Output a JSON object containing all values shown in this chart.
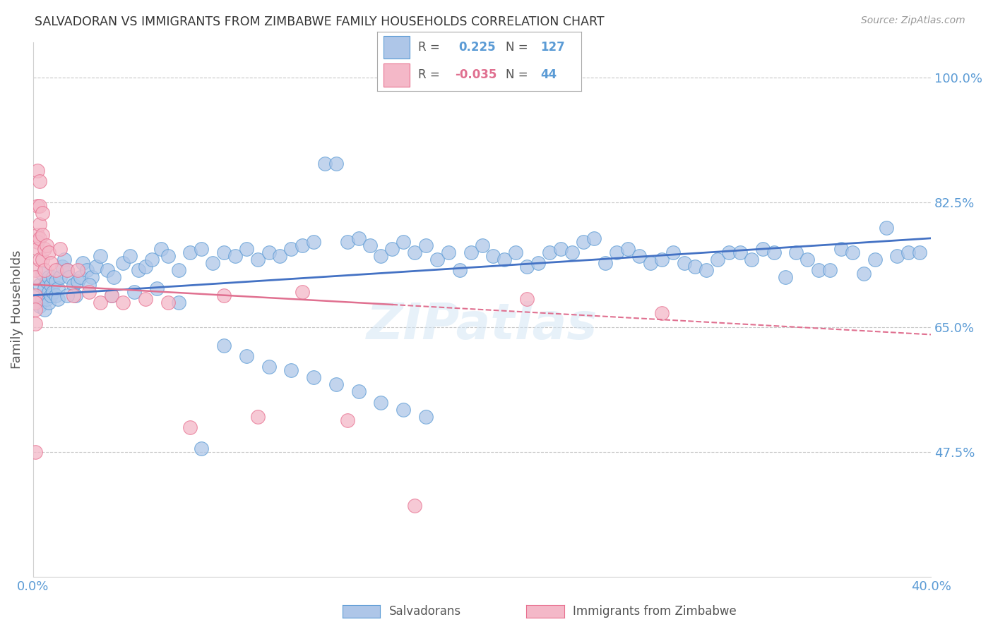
{
  "title": "SALVADORAN VS IMMIGRANTS FROM ZIMBABWE FAMILY HOUSEHOLDS CORRELATION CHART",
  "source": "Source: ZipAtlas.com",
  "ylabel": "Family Households",
  "xlim": [
    0.0,
    0.4
  ],
  "ylim": [
    0.3,
    1.05
  ],
  "yticks": [
    0.475,
    0.65,
    0.825,
    1.0
  ],
  "ytick_labels": [
    "47.5%",
    "65.0%",
    "82.5%",
    "100.0%"
  ],
  "xticks": [
    0.0,
    0.05,
    0.1,
    0.15,
    0.2,
    0.25,
    0.3,
    0.35,
    0.4
  ],
  "xtick_labels": [
    "0.0%",
    "",
    "",
    "",
    "",
    "",
    "",
    "",
    "40.0%"
  ],
  "blue_R": 0.225,
  "blue_N": 127,
  "pink_R": -0.035,
  "pink_N": 44,
  "blue_color": "#aec6e8",
  "blue_edge_color": "#5b9bd5",
  "blue_line_color": "#4472c4",
  "pink_color": "#f4b8c8",
  "pink_edge_color": "#e87090",
  "pink_line_color": "#e07090",
  "axis_tick_color": "#5b9bd5",
  "grid_color": "#c8c8c8",
  "background_color": "#ffffff",
  "watermark_color": "#d0e4f4",
  "blue_x": [
    0.002,
    0.003,
    0.003,
    0.004,
    0.004,
    0.005,
    0.005,
    0.006,
    0.006,
    0.007,
    0.007,
    0.007,
    0.008,
    0.008,
    0.009,
    0.009,
    0.01,
    0.01,
    0.011,
    0.011,
    0.012,
    0.013,
    0.014,
    0.015,
    0.016,
    0.018,
    0.019,
    0.02,
    0.021,
    0.022,
    0.024,
    0.026,
    0.028,
    0.03,
    0.033,
    0.036,
    0.04,
    0.043,
    0.047,
    0.05,
    0.053,
    0.057,
    0.06,
    0.065,
    0.07,
    0.075,
    0.08,
    0.085,
    0.09,
    0.095,
    0.1,
    0.105,
    0.11,
    0.115,
    0.12,
    0.125,
    0.13,
    0.135,
    0.14,
    0.145,
    0.15,
    0.155,
    0.16,
    0.165,
    0.17,
    0.175,
    0.18,
    0.185,
    0.19,
    0.195,
    0.2,
    0.205,
    0.21,
    0.215,
    0.22,
    0.225,
    0.23,
    0.235,
    0.24,
    0.245,
    0.25,
    0.255,
    0.26,
    0.265,
    0.27,
    0.275,
    0.28,
    0.285,
    0.29,
    0.295,
    0.3,
    0.305,
    0.31,
    0.315,
    0.32,
    0.325,
    0.33,
    0.335,
    0.34,
    0.345,
    0.35,
    0.355,
    0.36,
    0.365,
    0.37,
    0.375,
    0.38,
    0.385,
    0.39,
    0.395,
    0.015,
    0.025,
    0.035,
    0.045,
    0.055,
    0.065,
    0.075,
    0.085,
    0.095,
    0.105,
    0.115,
    0.125,
    0.135,
    0.145,
    0.155,
    0.165,
    0.175
  ],
  "blue_y": [
    0.695,
    0.71,
    0.68,
    0.725,
    0.69,
    0.705,
    0.675,
    0.715,
    0.69,
    0.72,
    0.7,
    0.685,
    0.71,
    0.695,
    0.72,
    0.7,
    0.715,
    0.695,
    0.705,
    0.69,
    0.72,
    0.735,
    0.745,
    0.73,
    0.72,
    0.71,
    0.695,
    0.715,
    0.72,
    0.74,
    0.73,
    0.72,
    0.735,
    0.75,
    0.73,
    0.72,
    0.74,
    0.75,
    0.73,
    0.735,
    0.745,
    0.76,
    0.75,
    0.73,
    0.755,
    0.76,
    0.74,
    0.755,
    0.75,
    0.76,
    0.745,
    0.755,
    0.75,
    0.76,
    0.765,
    0.77,
    0.88,
    0.88,
    0.77,
    0.775,
    0.765,
    0.75,
    0.76,
    0.77,
    0.755,
    0.765,
    0.745,
    0.755,
    0.73,
    0.755,
    0.765,
    0.75,
    0.745,
    0.755,
    0.735,
    0.74,
    0.755,
    0.76,
    0.755,
    0.77,
    0.775,
    0.74,
    0.755,
    0.76,
    0.75,
    0.74,
    0.745,
    0.755,
    0.74,
    0.735,
    0.73,
    0.745,
    0.755,
    0.755,
    0.745,
    0.76,
    0.755,
    0.72,
    0.755,
    0.745,
    0.73,
    0.73,
    0.76,
    0.755,
    0.725,
    0.745,
    0.79,
    0.75,
    0.755,
    0.755,
    0.695,
    0.71,
    0.695,
    0.7,
    0.705,
    0.685,
    0.48,
    0.625,
    0.61,
    0.595,
    0.59,
    0.58,
    0.57,
    0.56,
    0.545,
    0.535,
    0.525
  ],
  "pink_x": [
    0.001,
    0.001,
    0.001,
    0.001,
    0.001,
    0.001,
    0.001,
    0.002,
    0.002,
    0.002,
    0.002,
    0.002,
    0.003,
    0.003,
    0.003,
    0.003,
    0.003,
    0.004,
    0.004,
    0.004,
    0.005,
    0.005,
    0.006,
    0.007,
    0.008,
    0.01,
    0.012,
    0.015,
    0.018,
    0.02,
    0.025,
    0.03,
    0.035,
    0.04,
    0.05,
    0.06,
    0.07,
    0.085,
    0.1,
    0.12,
    0.14,
    0.17,
    0.22,
    0.28
  ],
  "pink_y": [
    0.73,
    0.72,
    0.695,
    0.685,
    0.675,
    0.655,
    0.475,
    0.87,
    0.82,
    0.78,
    0.77,
    0.76,
    0.855,
    0.82,
    0.795,
    0.775,
    0.745,
    0.81,
    0.78,
    0.745,
    0.76,
    0.73,
    0.765,
    0.755,
    0.74,
    0.73,
    0.76,
    0.73,
    0.695,
    0.73,
    0.7,
    0.685,
    0.695,
    0.685,
    0.69,
    0.685,
    0.51,
    0.695,
    0.525,
    0.7,
    0.52,
    0.4,
    0.69,
    0.67
  ]
}
